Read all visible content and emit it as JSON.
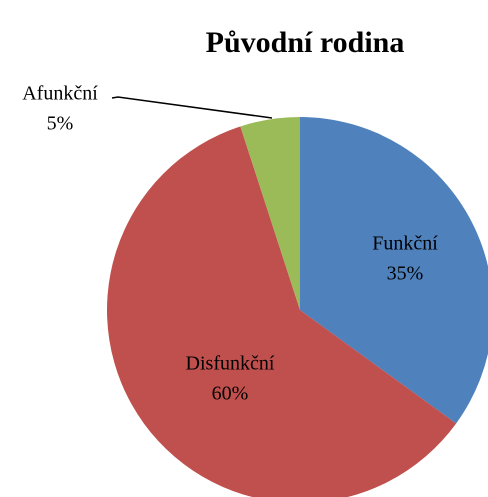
{
  "chart_data": {
    "type": "pie",
    "title": "Původní rodina",
    "categories": [
      "Funkční",
      "Disfunkční",
      "Afunkční"
    ],
    "values": [
      35,
      60,
      5
    ],
    "value_labels": [
      "35%",
      "60%",
      "5%"
    ],
    "colors": [
      "#4f81bd",
      "#c0504d",
      "#9bbb59"
    ]
  }
}
